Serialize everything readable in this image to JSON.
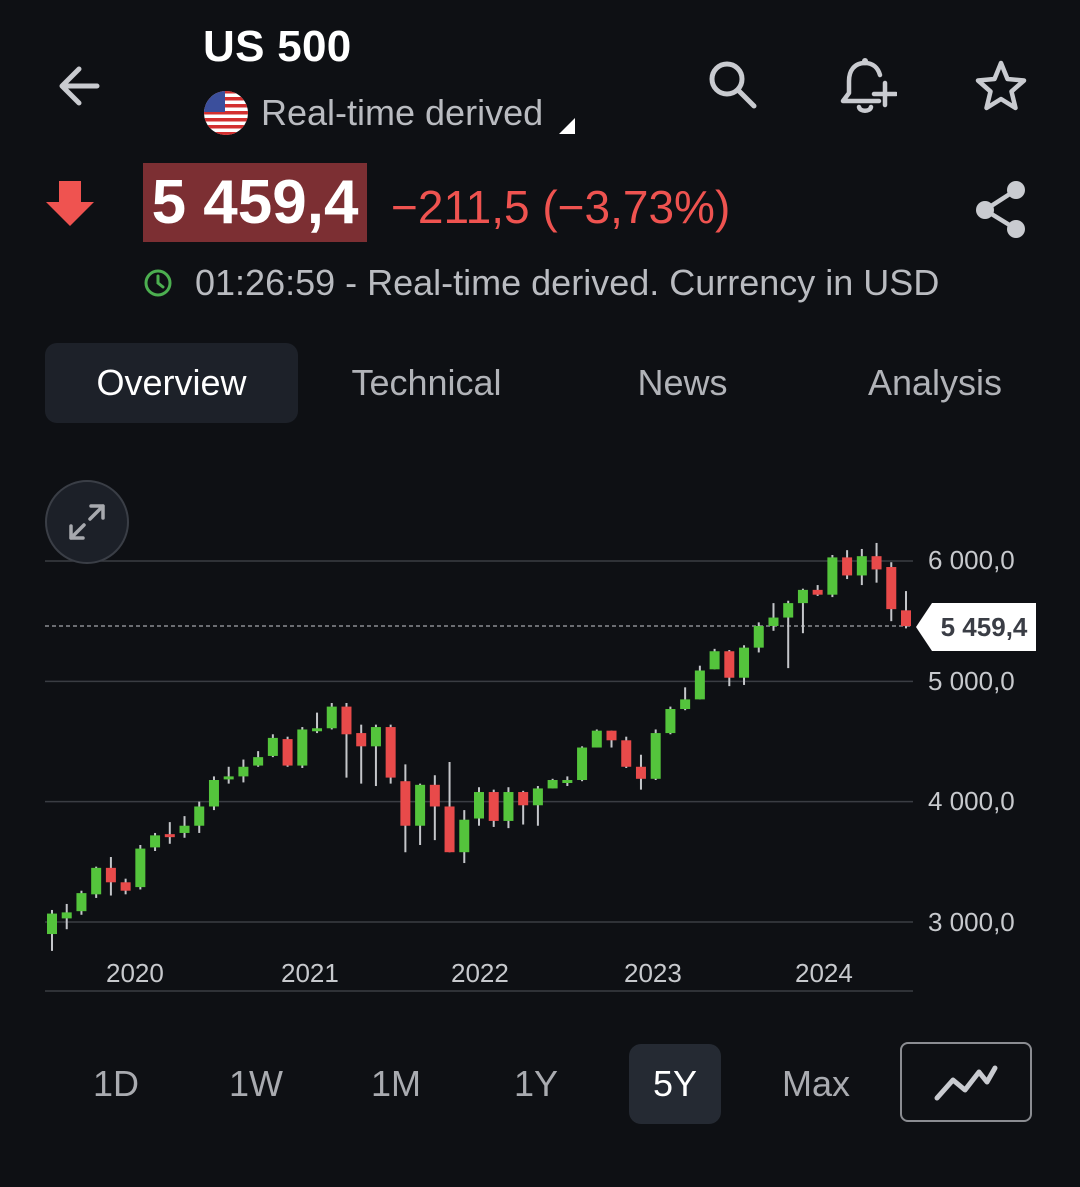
{
  "header": {
    "title": "US 500",
    "subtitle": "Real-time derived"
  },
  "quote": {
    "price": "5 459,4",
    "change": "−211,5 (−3,73%)",
    "timestamp_line": "01:26:59 - Real-time derived. Currency in USD",
    "direction": "down"
  },
  "tabs": [
    {
      "label": "Overview",
      "active": true
    },
    {
      "label": "Technical",
      "active": false
    },
    {
      "label": "News",
      "active": false
    },
    {
      "label": "Analysis",
      "active": false
    }
  ],
  "ranges": [
    {
      "label": "1D",
      "active": false
    },
    {
      "label": "1W",
      "active": false
    },
    {
      "label": "1M",
      "active": false
    },
    {
      "label": "1Y",
      "active": false
    },
    {
      "label": "5Y",
      "active": true
    },
    {
      "label": "Max",
      "active": false
    }
  ],
  "colors": {
    "up": "#54c43c",
    "down": "#e84a4a",
    "accent_red": "#ef5350",
    "clock_green": "#4caf50"
  },
  "icons": {
    "back": "arrow-left-icon",
    "search": "search-icon",
    "alert": "bell-plus-icon",
    "favorite": "star-icon",
    "share": "share-icon",
    "expand": "expand-icon",
    "chart_type": "line-chart-icon",
    "flag": "us-flag-icon"
  },
  "chart_data": {
    "type": "candlestick",
    "interval": "monthly",
    "y_ticks": [
      "6 000,0",
      "5 000,0",
      "4 000,0",
      "3 000,0"
    ],
    "y_tick_values": [
      6000,
      5000,
      4000,
      3000
    ],
    "x_ticks": [
      "2020",
      "2021",
      "2022",
      "2023",
      "2024"
    ],
    "current_price_label": "5 459,4",
    "current_price": 5459.4,
    "ylim": [
      2600,
      6150
    ],
    "grid": true,
    "candles": [
      [
        2900,
        3070,
        2760,
        3100
      ],
      [
        3030,
        3080,
        2940,
        3150
      ],
      [
        3090,
        3240,
        3060,
        3260
      ],
      [
        3230,
        3450,
        3200,
        3460
      ],
      [
        3450,
        3330,
        3220,
        3540
      ],
      [
        3330,
        3260,
        3230,
        3360
      ],
      [
        3290,
        3610,
        3270,
        3640
      ],
      [
        3620,
        3720,
        3590,
        3740
      ],
      [
        3730,
        3710,
        3650,
        3830
      ],
      [
        3740,
        3800,
        3700,
        3880
      ],
      [
        3800,
        3960,
        3740,
        4000
      ],
      [
        3960,
        4180,
        3930,
        4210
      ],
      [
        4190,
        4210,
        4150,
        4290
      ],
      [
        4210,
        4290,
        4160,
        4350
      ],
      [
        4300,
        4370,
        4290,
        4420
      ],
      [
        4380,
        4530,
        4370,
        4560
      ],
      [
        4520,
        4300,
        4290,
        4540
      ],
      [
        4300,
        4600,
        4280,
        4620
      ],
      [
        4600,
        4610,
        4570,
        4740
      ],
      [
        4610,
        4790,
        4600,
        4820
      ],
      [
        4790,
        4560,
        4200,
        4820
      ],
      [
        4570,
        4460,
        4150,
        4640
      ],
      [
        4460,
        4620,
        4130,
        4640
      ],
      [
        4620,
        4200,
        4150,
        4640
      ],
      [
        4170,
        3800,
        3580,
        4310
      ],
      [
        3800,
        4140,
        3640,
        4150
      ],
      [
        4140,
        3960,
        3680,
        4220
      ],
      [
        3960,
        3580,
        3580,
        4330
      ],
      [
        3580,
        3850,
        3490,
        3930
      ],
      [
        3860,
        4080,
        3800,
        4120
      ],
      [
        4080,
        3840,
        3790,
        4100
      ],
      [
        3840,
        4080,
        3780,
        4120
      ],
      [
        4080,
        3970,
        3810,
        4090
      ],
      [
        3970,
        4110,
        3800,
        4130
      ],
      [
        4110,
        4180,
        4110,
        4190
      ],
      [
        4180,
        4180,
        4130,
        4210
      ],
      [
        4180,
        4450,
        4170,
        4460
      ],
      [
        4450,
        4590,
        4450,
        4600
      ],
      [
        4590,
        4510,
        4450,
        4590
      ],
      [
        4510,
        4290,
        4280,
        4540
      ],
      [
        4290,
        4190,
        4100,
        4390
      ],
      [
        4190,
        4570,
        4180,
        4600
      ],
      [
        4570,
        4770,
        4560,
        4790
      ],
      [
        4770,
        4850,
        4760,
        4950
      ],
      [
        4850,
        5090,
        4850,
        5130
      ],
      [
        5100,
        5250,
        5100,
        5270
      ],
      [
        5250,
        5030,
        4960,
        5260
      ],
      [
        5030,
        5280,
        4970,
        5300
      ],
      [
        5280,
        5460,
        5240,
        5490
      ],
      [
        5460,
        5530,
        5420,
        5650
      ],
      [
        5530,
        5650,
        5110,
        5670
      ],
      [
        5650,
        5760,
        5400,
        5770
      ],
      [
        5760,
        5720,
        5710,
        5800
      ],
      [
        5720,
        6030,
        5700,
        6050
      ],
      [
        6030,
        5880,
        5850,
        6090
      ],
      [
        5880,
        6040,
        5800,
        6100
      ],
      [
        6040,
        5930,
        5820,
        6150
      ],
      [
        5950,
        5600,
        5500,
        5990
      ],
      [
        5590,
        5459,
        5440,
        5750
      ]
    ]
  }
}
